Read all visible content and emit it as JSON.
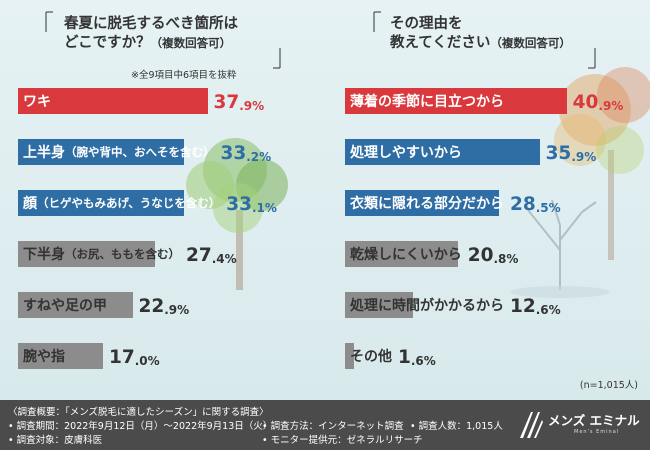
{
  "left_title_line1": "春夏に脱毛するべき箇所は",
  "left_title_line2": "どこですか？",
  "left_title_suffix": "（複数回答可）",
  "left_note": "※全9項目中6項目を抜粋",
  "right_title_line1": "その理由を",
  "right_title_line2": "教えてください",
  "right_title_suffix": "（複数回答可）",
  "sample_size": "(n=1,015人)",
  "colors": {
    "red": "#d9393d",
    "blue": "#2e6ea5",
    "gray": "#8c8c8c",
    "footer": "#4b4b4b"
  },
  "chart_data": [
    {
      "type": "bar",
      "orientation": "horizontal",
      "title": "春夏に脱毛するべき箇所はどこですか？（複数回答可）",
      "unit": "%",
      "categories": [
        "ワキ",
        "上半身",
        "顔",
        "下半身",
        "すねや足の甲",
        "腕や指"
      ],
      "category_details": [
        "",
        "（腕や背中、おへそを含む）",
        "（ヒゲやもみあげ、うなじを含む）",
        "（お尻、ももを含む）",
        "",
        ""
      ],
      "values": [
        37.9,
        33.2,
        33.1,
        27.4,
        22.9,
        17.0
      ],
      "value_int": [
        "37",
        "33",
        "33",
        "27",
        "22",
        "17"
      ],
      "value_dec": [
        ".9%",
        ".2%",
        ".1%",
        ".4%",
        ".9%",
        ".0%"
      ],
      "bar_colors": [
        "#d9393d",
        "#2e6ea5",
        "#2e6ea5",
        "#8c8c8c",
        "#8c8c8c",
        "#8c8c8c"
      ]
    },
    {
      "type": "bar",
      "orientation": "horizontal",
      "title": "その理由を教えてください（複数回答可）",
      "unit": "%",
      "categories": [
        "薄着の季節に目立つから",
        "処理しやすいから",
        "衣類に隠れる部分だから",
        "乾燥しにくいから",
        "処理に時間がかかるから",
        "その他"
      ],
      "category_details": [
        "",
        "",
        "",
        "",
        "",
        ""
      ],
      "values": [
        40.9,
        35.9,
        28.5,
        20.8,
        12.6,
        1.6
      ],
      "value_int": [
        "40",
        "35",
        "28",
        "20",
        "12",
        "1"
      ],
      "value_dec": [
        ".9%",
        ".9%",
        ".5%",
        ".8%",
        ".6%",
        ".6%"
      ],
      "bar_colors": [
        "#d9393d",
        "#2e6ea5",
        "#2e6ea5",
        "#8c8c8c",
        "#8c8c8c",
        "#8c8c8c"
      ]
    }
  ],
  "footer": {
    "line1": "〈調査概要：「メンズ脱毛に適したシーズン」に関する調査〉",
    "period": "• 調査期間：2022年9月12日（月）〜2022年9月13日（火）",
    "method": "• 調査方法：インターネット調査",
    "count": "• 調査人数：1,015人",
    "target": "• 調査対象：皮膚科医",
    "provider": "• モニター提供元：ゼネラルリサーチ"
  },
  "logo": {
    "text": "メンズ エミナル",
    "sub": "Men's Eminal"
  }
}
